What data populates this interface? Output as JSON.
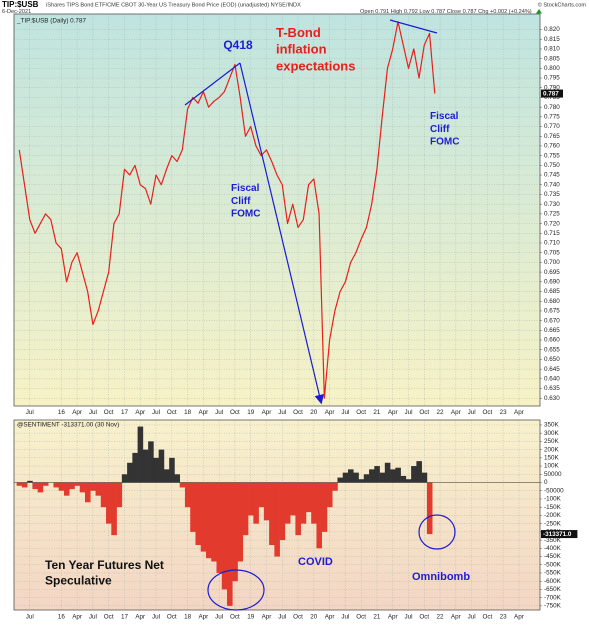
{
  "header": {
    "symbol": "TIP:$USB",
    "description": "iShares TIPS Bond ETF/CME CBOT 30-Year US Treasury Bond Price (EOD) (unadjusted)  NYSE/INDX",
    "date": "6-Dec-2021",
    "ohlc": "Open 0.791  High 0.792  Low 0.787  Close 0.787  Chg +0.002 (+0.24%)",
    "copyright": "© StockCharts.com"
  },
  "chart_data": [
    {
      "type": "line",
      "legend": "_TIP:$USB (Daily) 0.787",
      "last_label": "0.787",
      "color": "#e8201c",
      "grid": true,
      "xlim": [
        "2015-04",
        "2023-08"
      ],
      "xticks": [
        {
          "value": "2015-07",
          "label": "Jul"
        },
        {
          "value": "2016-01",
          "label": "16"
        },
        {
          "value": "2016-04",
          "label": "Apr"
        },
        {
          "value": "2016-07",
          "label": "Jul"
        },
        {
          "value": "2016-10",
          "label": "Oct"
        },
        {
          "value": "2017-01",
          "label": "17"
        },
        {
          "value": "2017-04",
          "label": "Apr"
        },
        {
          "value": "2017-07",
          "label": "Jul"
        },
        {
          "value": "2017-10",
          "label": "Oct"
        },
        {
          "value": "2018-01",
          "label": "18"
        },
        {
          "value": "2018-04",
          "label": "Apr"
        },
        {
          "value": "2018-07",
          "label": "Jul"
        },
        {
          "value": "2018-10",
          "label": "Oct"
        },
        {
          "value": "2019-01",
          "label": "19"
        },
        {
          "value": "2019-04",
          "label": "Apr"
        },
        {
          "value": "2019-07",
          "label": "Jul"
        },
        {
          "value": "2019-10",
          "label": "Oct"
        },
        {
          "value": "2020-01",
          "label": "20"
        },
        {
          "value": "2020-04",
          "label": "Apr"
        },
        {
          "value": "2020-07",
          "label": "Jul"
        },
        {
          "value": "2020-10",
          "label": "Oct"
        },
        {
          "value": "2021-01",
          "label": "21"
        },
        {
          "value": "2021-04",
          "label": "Apr"
        },
        {
          "value": "2021-07",
          "label": "Jul"
        },
        {
          "value": "2021-10",
          "label": "Oct"
        },
        {
          "value": "2022-01",
          "label": "22"
        },
        {
          "value": "2022-04",
          "label": "Apr"
        },
        {
          "value": "2022-07",
          "label": "Jul"
        },
        {
          "value": "2022-10",
          "label": "Oct"
        },
        {
          "value": "2023-01",
          "label": "23"
        },
        {
          "value": "2023-04",
          "label": "Apr"
        }
      ],
      "ylim": [
        0.626,
        0.828
      ],
      "yticks": [
        {
          "value": 0.63,
          "label": "0.630"
        },
        0.635,
        {
          "value": 0.64,
          "label": "0.640"
        },
        0.645,
        {
          "value": 0.65,
          "label": "0.650"
        },
        0.655,
        {
          "value": 0.66,
          "label": "0.660"
        },
        0.665,
        {
          "value": 0.67,
          "label": "0.670"
        },
        0.675,
        {
          "value": 0.68,
          "label": "0.680"
        },
        0.685,
        {
          "value": 0.69,
          "label": "0.690"
        },
        0.695,
        {
          "value": 0.7,
          "label": "0.700"
        },
        0.705,
        {
          "value": 0.71,
          "label": "0.710"
        },
        0.715,
        {
          "value": 0.72,
          "label": "0.720"
        },
        0.725,
        {
          "value": 0.73,
          "label": "0.730"
        },
        0.735,
        {
          "value": 0.74,
          "label": "0.740"
        },
        0.745,
        {
          "value": 0.75,
          "label": "0.750"
        },
        0.755,
        {
          "value": 0.76,
          "label": "0.760"
        },
        0.765,
        {
          "value": 0.77,
          "label": "0.770"
        },
        0.775,
        {
          "value": 0.78,
          "label": "0.780"
        },
        0.785,
        {
          "value": 0.79,
          "label": "0.790"
        },
        0.795,
        {
          "value": 0.8,
          "label": "0.800"
        },
        0.805,
        {
          "value": 0.81,
          "label": "0.810"
        },
        0.815,
        {
          "value": 0.82,
          "label": "0.820"
        }
      ],
      "x": [
        "2015-05",
        "2015-06",
        "2015-07",
        "2015-08",
        "2015-09",
        "2015-10",
        "2015-11",
        "2015-12",
        "2016-01",
        "2016-02",
        "2016-03",
        "2016-04",
        "2016-05",
        "2016-06",
        "2016-07",
        "2016-08",
        "2016-09",
        "2016-10",
        "2016-11",
        "2016-12",
        "2017-01",
        "2017-02",
        "2017-03",
        "2017-04",
        "2017-05",
        "2017-06",
        "2017-07",
        "2017-08",
        "2017-09",
        "2017-10",
        "2017-11",
        "2017-12",
        "2018-01",
        "2018-02",
        "2018-03",
        "2018-04",
        "2018-05",
        "2018-06",
        "2018-07",
        "2018-08",
        "2018-09",
        "2018-10",
        "2018-11",
        "2018-12",
        "2019-01",
        "2019-02",
        "2019-03",
        "2019-04",
        "2019-05",
        "2019-06",
        "2019-07",
        "2019-08",
        "2019-09",
        "2019-10",
        "2019-11",
        "2019-12",
        "2020-01",
        "2020-02",
        "2020-03",
        "2020-04",
        "2020-05",
        "2020-06",
        "2020-07",
        "2020-08",
        "2020-09",
        "2020-10",
        "2020-11",
        "2020-12",
        "2021-01",
        "2021-02",
        "2021-03",
        "2021-04",
        "2021-05",
        "2021-06",
        "2021-07",
        "2021-08",
        "2021-09",
        "2021-10",
        "2021-11",
        "2021-12"
      ],
      "values": [
        0.758,
        0.74,
        0.722,
        0.715,
        0.72,
        0.725,
        0.722,
        0.71,
        0.707,
        0.69,
        0.7,
        0.705,
        0.695,
        0.685,
        0.668,
        0.675,
        0.685,
        0.695,
        0.72,
        0.725,
        0.748,
        0.745,
        0.75,
        0.74,
        0.738,
        0.73,
        0.745,
        0.74,
        0.748,
        0.755,
        0.752,
        0.758,
        0.779,
        0.785,
        0.782,
        0.788,
        0.78,
        0.783,
        0.785,
        0.788,
        0.795,
        0.802,
        0.785,
        0.765,
        0.77,
        0.76,
        0.755,
        0.758,
        0.752,
        0.745,
        0.74,
        0.72,
        0.73,
        0.718,
        0.722,
        0.74,
        0.743,
        0.725,
        0.63,
        0.66,
        0.675,
        0.685,
        0.69,
        0.7,
        0.705,
        0.712,
        0.718,
        0.73,
        0.748,
        0.775,
        0.8,
        0.81,
        0.824,
        0.812,
        0.8,
        0.81,
        0.795,
        0.812,
        0.818,
        0.787
      ],
      "annotations": [
        {
          "lines": [
            "Q418"
          ],
          "color": "#1c1cd4"
        },
        {
          "lines": [
            "T-Bond",
            "inflation",
            "expectations"
          ],
          "color": "#e8201c"
        },
        {
          "lines": [
            "Fiscal",
            "Cliff",
            "FOMC"
          ],
          "color": "#1c1cd4"
        },
        {
          "lines": [
            "Fiscal",
            "Cliff",
            "FOMC"
          ],
          "color": "#1c1cd4"
        }
      ]
    },
    {
      "type": "bar",
      "legend": "@SENTIMENT -313371.00 (30 Nov)",
      "last_label": "-313371.0",
      "colors": {
        "positive": "#333333",
        "negative": "#e23a2c"
      },
      "grid": true,
      "xlim": [
        "2015-04",
        "2023-08"
      ],
      "xticks": [
        {
          "value": "2015-07",
          "label": "Jul"
        },
        {
          "value": "2016-01",
          "label": "16"
        },
        {
          "value": "2016-04",
          "label": "Apr"
        },
        {
          "value": "2016-07",
          "label": "Jul"
        },
        {
          "value": "2016-10",
          "label": "Oct"
        },
        {
          "value": "2017-01",
          "label": "17"
        },
        {
          "value": "2017-04",
          "label": "Apr"
        },
        {
          "value": "2017-07",
          "label": "Jul"
        },
        {
          "value": "2017-10",
          "label": "Oct"
        },
        {
          "value": "2018-01",
          "label": "18"
        },
        {
          "value": "2018-04",
          "label": "Apr"
        },
        {
          "value": "2018-07",
          "label": "Jul"
        },
        {
          "value": "2018-10",
          "label": "Oct"
        },
        {
          "value": "2019-01",
          "label": "19"
        },
        {
          "value": "2019-04",
          "label": "Apr"
        },
        {
          "value": "2019-07",
          "label": "Jul"
        },
        {
          "value": "2019-10",
          "label": "Oct"
        },
        {
          "value": "2020-01",
          "label": "20"
        },
        {
          "value": "2020-04",
          "label": "Apr"
        },
        {
          "value": "2020-07",
          "label": "Jul"
        },
        {
          "value": "2020-10",
          "label": "Oct"
        },
        {
          "value": "2021-01",
          "label": "21"
        },
        {
          "value": "2021-04",
          "label": "Apr"
        },
        {
          "value": "2021-07",
          "label": "Jul"
        },
        {
          "value": "2021-10",
          "label": "Oct"
        },
        {
          "value": "2022-01",
          "label": "22"
        },
        {
          "value": "2022-04",
          "label": "Apr"
        },
        {
          "value": "2022-07",
          "label": "Jul"
        },
        {
          "value": "2022-10",
          "label": "Oct"
        },
        {
          "value": "2023-01",
          "label": "23"
        },
        {
          "value": "2023-04",
          "label": "Apr"
        }
      ],
      "ylim": [
        -775000,
        380000
      ],
      "yticks": [
        {
          "value": 350000,
          "label": "350K"
        },
        {
          "value": 300000,
          "label": "300K"
        },
        {
          "value": 250000,
          "label": "250K"
        },
        {
          "value": 200000,
          "label": "200K"
        },
        {
          "value": 150000,
          "label": "150K"
        },
        {
          "value": 100000,
          "label": "100K"
        },
        50000,
        0,
        -50000,
        {
          "value": -100000,
          "label": "-100K"
        },
        {
          "value": -150000,
          "label": "-150K"
        },
        {
          "value": -200000,
          "label": "-200K"
        },
        {
          "value": -250000,
          "label": "-250K"
        },
        {
          "value": -300000,
          "label": "-300K"
        },
        {
          "value": -350000,
          "label": "-350K"
        },
        {
          "value": -400000,
          "label": "-400K"
        },
        {
          "value": -450000,
          "label": "-450K"
        },
        {
          "value": -500000,
          "label": "-500K"
        },
        {
          "value": -550000,
          "label": "-550K"
        },
        {
          "value": -600000,
          "label": "-600K"
        },
        {
          "value": -650000,
          "label": "-650K"
        },
        {
          "value": -700000,
          "label": "-700K"
        },
        {
          "value": -750000,
          "label": "-750K"
        }
      ],
      "x": [
        "2015-05",
        "2015-06",
        "2015-07",
        "2015-08",
        "2015-09",
        "2015-10",
        "2015-11",
        "2015-12",
        "2016-01",
        "2016-02",
        "2016-03",
        "2016-04",
        "2016-05",
        "2016-06",
        "2016-07",
        "2016-08",
        "2016-09",
        "2016-10",
        "2016-11",
        "2016-12",
        "2017-01",
        "2017-02",
        "2017-03",
        "2017-04",
        "2017-05",
        "2017-06",
        "2017-07",
        "2017-08",
        "2017-09",
        "2017-10",
        "2017-11",
        "2017-12",
        "2018-01",
        "2018-02",
        "2018-03",
        "2018-04",
        "2018-05",
        "2018-06",
        "2018-07",
        "2018-08",
        "2018-09",
        "2018-10",
        "2018-11",
        "2018-12",
        "2019-01",
        "2019-02",
        "2019-03",
        "2019-04",
        "2019-05",
        "2019-06",
        "2019-07",
        "2019-08",
        "2019-09",
        "2019-10",
        "2019-11",
        "2019-12",
        "2020-01",
        "2020-02",
        "2020-03",
        "2020-04",
        "2020-05",
        "2020-06",
        "2020-07",
        "2020-08",
        "2020-09",
        "2020-10",
        "2020-11",
        "2020-12",
        "2021-01",
        "2021-02",
        "2021-03",
        "2021-04",
        "2021-05",
        "2021-06",
        "2021-07",
        "2021-08",
        "2021-09",
        "2021-10",
        "2021-11"
      ],
      "values": [
        -20000,
        -30000,
        10000,
        -40000,
        -60000,
        -20000,
        0,
        -30000,
        -50000,
        -80000,
        -40000,
        -20000,
        -60000,
        -120000,
        -50000,
        -80000,
        -150000,
        -250000,
        -320000,
        -150000,
        50000,
        120000,
        180000,
        340000,
        200000,
        250000,
        150000,
        200000,
        80000,
        150000,
        50000,
        -30000,
        -150000,
        -300000,
        -380000,
        -420000,
        -460000,
        -480000,
        -550000,
        -650000,
        -750000,
        -600000,
        -480000,
        -320000,
        -200000,
        -250000,
        -150000,
        -230000,
        -380000,
        -450000,
        -350000,
        -250000,
        -200000,
        -320000,
        -250000,
        -180000,
        -250000,
        -400000,
        -300000,
        -150000,
        -50000,
        30000,
        60000,
        80000,
        60000,
        20000,
        50000,
        80000,
        100000,
        60000,
        120000,
        80000,
        90000,
        40000,
        20000,
        100000,
        130000,
        60000,
        -313371
      ],
      "annotations": [
        {
          "lines": [
            "Ten Year Futures Net",
            "Speculative"
          ],
          "color": "#111111"
        },
        {
          "lines": [
            "COVID"
          ],
          "color": "#1c1cd4"
        },
        {
          "lines": [
            "Omnibomb"
          ],
          "color": "#1c1cd4"
        }
      ]
    }
  ]
}
